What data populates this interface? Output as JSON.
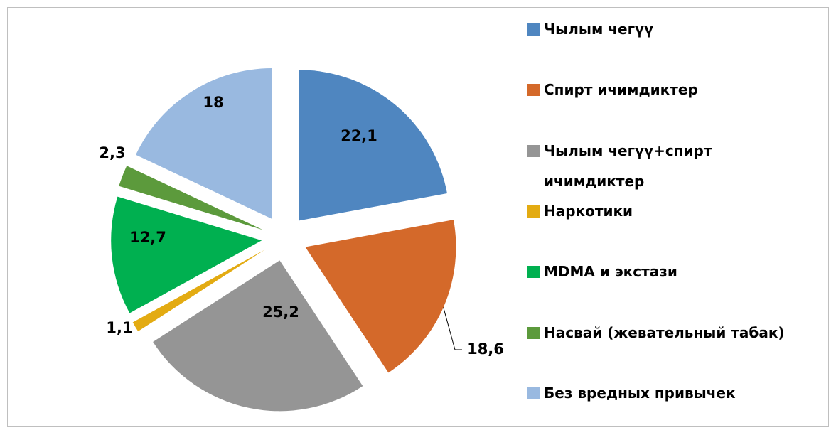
{
  "chart_data": {
    "type": "pie",
    "categories": [
      "Чылым чегүү",
      "Спирт ичимдиктер",
      "Чылым чегүү+спирт ичимдиктер",
      "Наркотики",
      "MDMA и экстази",
      "Насвай (жевательный табак)",
      "Без вредных привычек"
    ],
    "values": [
      22.1,
      18.6,
      25.2,
      1.1,
      12.7,
      2.3,
      18
    ],
    "value_labels": [
      "22,1",
      "18,6",
      "25,2",
      "1,1",
      "12,7",
      "2,3",
      "18"
    ],
    "colors": [
      "#4f86c0",
      "#d4692a",
      "#959595",
      "#e3ab12",
      "#00b050",
      "#5c9a3c",
      "#99b9e0"
    ]
  }
}
